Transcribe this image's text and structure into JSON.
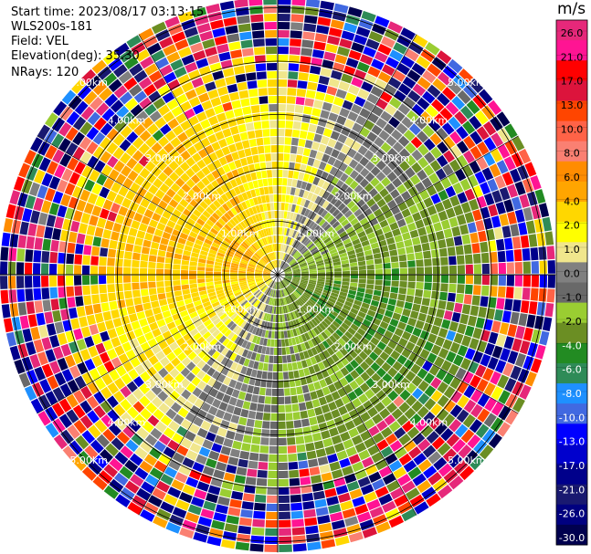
{
  "header": {
    "start_time": "Start time: 2023/08/17 03:13:15",
    "station": "WLS200s-181",
    "field": "Field: VEL",
    "elevation": "Elevation(deg): 35.30",
    "nrays": "NRays: 120"
  },
  "colorbar": {
    "unit": "m/s",
    "ticks": [
      "26.0",
      "21.0",
      "17.0",
      "13.0",
      "10.0",
      "8.0",
      "6.0",
      "4.0",
      "2.0",
      "1.0",
      "0.0",
      "-1.0",
      "-2.0",
      "-4.0",
      "-6.0",
      "-8.0",
      "-10.0",
      "-13.0",
      "-17.0",
      "-21.0",
      "-26.0",
      "-30.0"
    ],
    "colors": [
      "#e6287a",
      "#ff1493",
      "#ff0000",
      "#dc143c",
      "#ff4500",
      "#ff6347",
      "#fa8072",
      "#ff8c00",
      "#ffa500",
      "#ffd700",
      "#ffff00",
      "#f0e68c",
      "#808080",
      "#696969",
      "#9acd32",
      "#6b8e23",
      "#228b22",
      "#2e8b57",
      "#1e90ff",
      "#4169e1",
      "#0000ff",
      "#0000cd",
      "#00008b",
      "#191970",
      "#000080",
      "#00004f"
    ]
  },
  "chart_data": {
    "type": "polar radar PPI (radial velocity)",
    "field": "VEL",
    "units": "m/s",
    "rings_km": [
      1,
      2,
      3,
      4,
      5
    ],
    "ring_labels": [
      "1.00km",
      "2.00km",
      "3.00km",
      "4.00km",
      "5.00km"
    ],
    "max_range_km": 5.2,
    "nrays": 120,
    "inner_pattern": {
      "west_sector_mean_ms": 3.5,
      "north_sector_mean_ms": 1.5,
      "east_sector_mean_ms": -2.5,
      "south_sector_mean_ms": -1.5,
      "far_range_km": 4.0,
      "far_range_note": "noisy random velocities beyond ~4 km"
    }
  }
}
